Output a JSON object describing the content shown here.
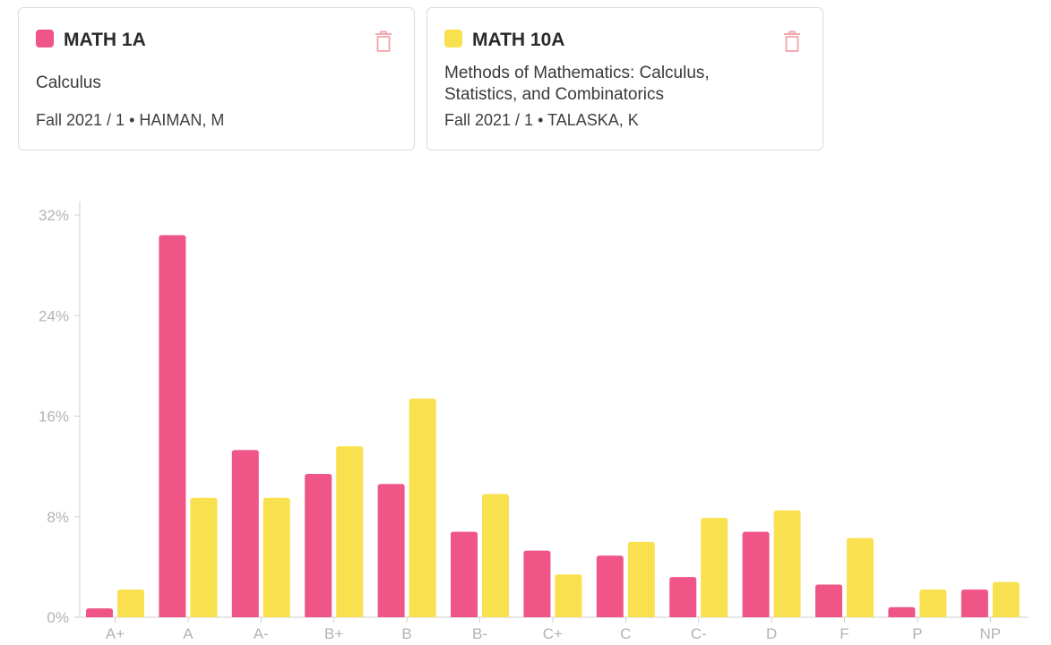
{
  "courses": [
    {
      "code": "MATH 1A",
      "title": "Calculus",
      "meta": "Fall 2021 / 1 • HAIMAN, M",
      "color": "#ef5586",
      "icon": "trash-icon"
    },
    {
      "code": "MATH 10A",
      "title": "Methods of Mathematics: Calculus, Statistics, and Combinatorics",
      "meta": "Fall 2021 / 1 • TALASKA, K",
      "color": "#f9e04f",
      "icon": "trash-icon"
    }
  ],
  "chart_data": {
    "type": "bar",
    "categories": [
      "A+",
      "A",
      "A-",
      "B+",
      "B",
      "B-",
      "C+",
      "C",
      "C-",
      "D",
      "F",
      "P",
      "NP"
    ],
    "series": [
      {
        "color": "#ef5586",
        "values": [
          0.7,
          30.4,
          13.3,
          11.4,
          10.6,
          6.8,
          5.3,
          4.9,
          3.2,
          6.8,
          2.6,
          0.8,
          2.2
        ]
      },
      {
        "color": "#f9e04f",
        "values": [
          2.2,
          9.5,
          9.5,
          13.6,
          17.4,
          9.8,
          3.4,
          6.0,
          7.9,
          8.5,
          6.3,
          2.2,
          2.8
        ]
      }
    ],
    "yticks": [
      "0%",
      "8%",
      "16%",
      "24%",
      "32%"
    ],
    "ylim": [
      0,
      32
    ],
    "grid": false
  }
}
